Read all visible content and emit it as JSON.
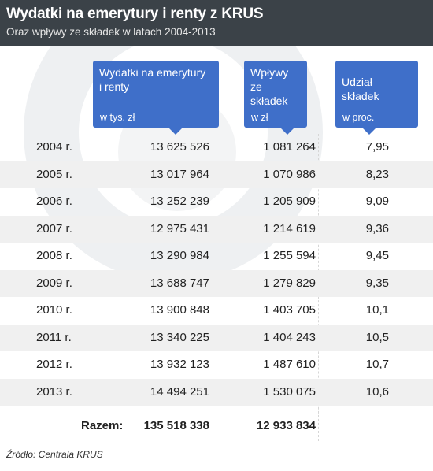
{
  "header": {
    "title": "Wydatki na emerytury i renty z KRUS",
    "subtitle": "Oraz wpływy ze składek w latach 2004-2013"
  },
  "columns": [
    {
      "label_line1": "Wydatki na emerytury",
      "label_line2": "i renty",
      "unit": "w tys. zł"
    },
    {
      "label_line1": "Wpływy",
      "label_line2": "ze składek",
      "unit": "w zł"
    },
    {
      "label_line1": "Udział składek",
      "label_line2": "",
      "unit": "w proc."
    }
  ],
  "chart_data": {
    "type": "table",
    "title": "Wydatki na emerytury i renty z KRUS",
    "subtitle": "Oraz wpływy ze składek w latach 2004-2013",
    "columns": [
      "",
      "Wydatki na emerytury i renty w tys. zł",
      "Wpływy ze składek w zł",
      "Udział składek w proc."
    ],
    "rows": [
      {
        "year": "2004 r.",
        "expenditure": "13 625 526",
        "income": "1 081 264",
        "share": "7,95"
      },
      {
        "year": "2005 r.",
        "expenditure": "13 017 964",
        "income": "1 070 986",
        "share": "8,23"
      },
      {
        "year": "2006 r.",
        "expenditure": "13 252 239",
        "income": "1 205 909",
        "share": "9,09"
      },
      {
        "year": "2007 r.",
        "expenditure": "12 975 431",
        "income": "1 214 619",
        "share": "9,36"
      },
      {
        "year": "2008 r.",
        "expenditure": "13 290 984",
        "income": "1 255 594",
        "share": "9,45"
      },
      {
        "year": "2009 r.",
        "expenditure": "13 688 747",
        "income": "1 279 829",
        "share": "9,35"
      },
      {
        "year": "2010 r.",
        "expenditure": "13 900 848",
        "income": "1 403 705",
        "share": "10,1"
      },
      {
        "year": "2011 r.",
        "expenditure": "13 340 225",
        "income": "1 404 243",
        "share": "10,5"
      },
      {
        "year": "2012 r.",
        "expenditure": "13 932 123",
        "income": "1 487 610",
        "share": "10,7"
      },
      {
        "year": "2013 r.",
        "expenditure": "14 494 251",
        "income": "1 530 075",
        "share": "10,6"
      }
    ],
    "total": {
      "label": "Razem:",
      "expenditure": "135 518 338",
      "income": "12 933 834"
    }
  },
  "source": "Źródło: Centrala KRUS",
  "colors": {
    "header_bg": "#3b4248",
    "accent": "#3f6fc9",
    "row_shade": "#f0f0f0"
  }
}
